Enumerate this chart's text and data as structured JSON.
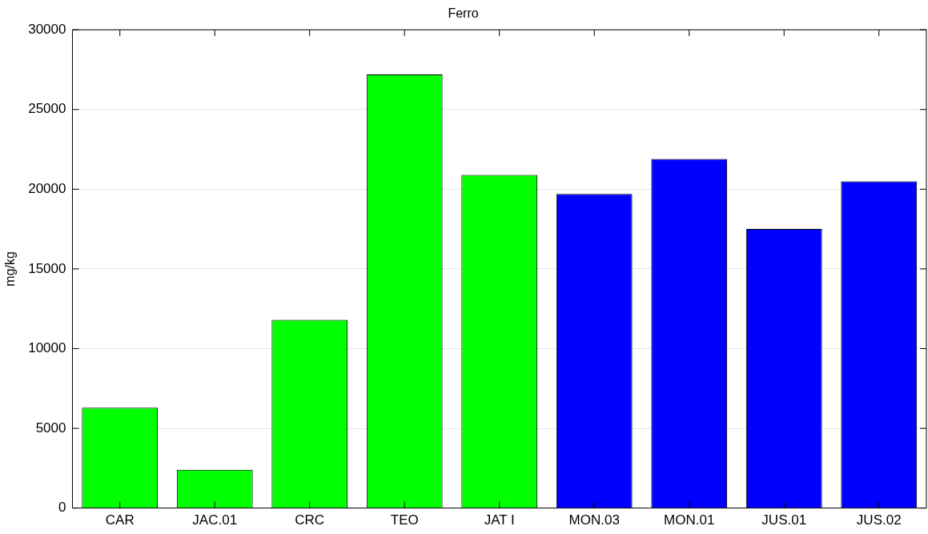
{
  "chart_data": {
    "type": "bar",
    "title": "Ferro",
    "ylabel": "mg/kg",
    "categories": [
      "CAR",
      "JAC.01",
      "CRC",
      "TEO",
      "JAT I",
      "MON.03",
      "MON.01",
      "JUS.01",
      "JUS.02"
    ],
    "values": [
      6300,
      2400,
      11800,
      27200,
      20900,
      19700,
      21900,
      17500,
      20500
    ],
    "colors": [
      "#00ff00",
      "#00ff00",
      "#00ff00",
      "#00ff00",
      "#00ff00",
      "#0000ff",
      "#0000ff",
      "#0000ff",
      "#0000ff"
    ],
    "ylim": [
      0,
      30000
    ],
    "yticks": [
      0,
      5000,
      10000,
      15000,
      20000,
      25000,
      30000
    ],
    "grid": "y",
    "legend": false
  }
}
